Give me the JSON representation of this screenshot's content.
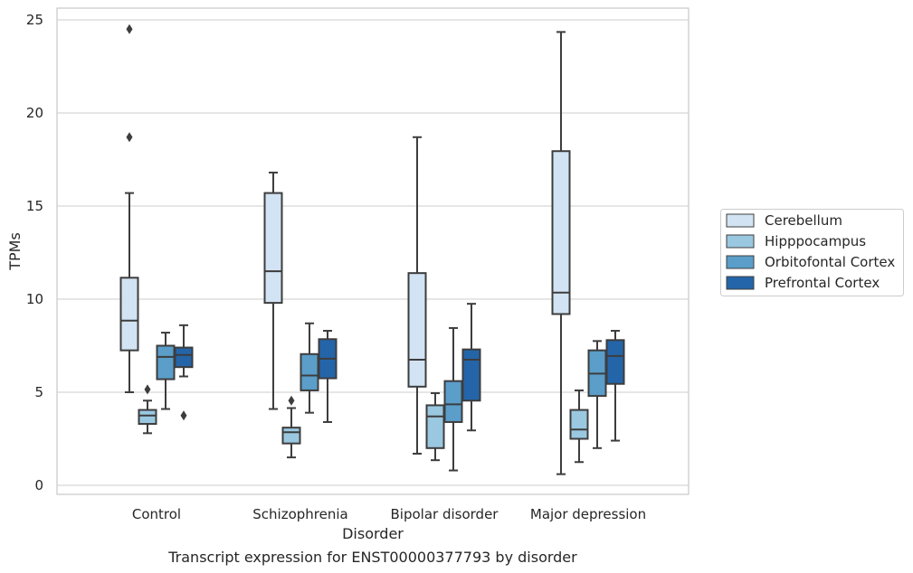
{
  "chart_data": {
    "type": "box",
    "title": "Transcript expression for ENST00000377793 by disorder",
    "xlabel": "Disorder",
    "ylabel": "TPMs",
    "ylim": [
      -0.5,
      25.7
    ],
    "yticks": [
      0,
      5,
      10,
      15,
      20,
      25
    ],
    "grid": "horizontal",
    "legend_position": "right",
    "categories": [
      "Control",
      "Schizophrenia",
      "Bipolar disorder",
      "Major depression"
    ],
    "series": [
      {
        "name": "Cerebellum",
        "color": "#d2e3f3",
        "boxes": [
          {
            "whislo": 5.0,
            "q1": 7.25,
            "med": 8.85,
            "q3": 11.15,
            "whishi": 15.7,
            "fliers": [
              18.7,
              24.5
            ]
          },
          {
            "whislo": 4.1,
            "q1": 9.8,
            "med": 11.5,
            "q3": 15.7,
            "whishi": 16.8,
            "fliers": []
          },
          {
            "whislo": 1.7,
            "q1": 5.3,
            "med": 6.75,
            "q3": 11.4,
            "whishi": 18.7,
            "fliers": []
          },
          {
            "whislo": 0.6,
            "q1": 9.2,
            "med": 10.35,
            "q3": 17.95,
            "whishi": 24.35,
            "fliers": []
          }
        ]
      },
      {
        "name": "Hipppocampus",
        "color": "#9ac8e0",
        "boxes": [
          {
            "whislo": 2.8,
            "q1": 3.3,
            "med": 3.75,
            "q3": 4.05,
            "whishi": 4.55,
            "fliers": [
              5.15
            ]
          },
          {
            "whislo": 1.5,
            "q1": 2.25,
            "med": 2.85,
            "q3": 3.1,
            "whishi": 4.15,
            "fliers": [
              4.55
            ]
          },
          {
            "whislo": 1.35,
            "q1": 2.0,
            "med": 3.7,
            "q3": 4.3,
            "whishi": 4.95,
            "fliers": []
          },
          {
            "whislo": 1.25,
            "q1": 2.5,
            "med": 3.0,
            "q3": 4.05,
            "whishi": 5.1,
            "fliers": []
          }
        ]
      },
      {
        "name": "Orbitofontal Cortex",
        "color": "#5a9ec9",
        "boxes": [
          {
            "whislo": 4.1,
            "q1": 5.7,
            "med": 6.9,
            "q3": 7.5,
            "whishi": 8.2,
            "fliers": []
          },
          {
            "whislo": 3.9,
            "q1": 5.1,
            "med": 5.9,
            "q3": 7.05,
            "whishi": 8.7,
            "fliers": []
          },
          {
            "whislo": 0.8,
            "q1": 3.4,
            "med": 4.35,
            "q3": 5.6,
            "whishi": 8.45,
            "fliers": []
          },
          {
            "whislo": 2.0,
            "q1": 4.8,
            "med": 6.0,
            "q3": 7.25,
            "whishi": 7.75,
            "fliers": []
          }
        ]
      },
      {
        "name": "Prefrontal Cortex",
        "color": "#2465a9",
        "boxes": [
          {
            "whislo": 5.85,
            "q1": 6.35,
            "med": 7.0,
            "q3": 7.4,
            "whishi": 8.6,
            "fliers": [
              3.75
            ]
          },
          {
            "whislo": 3.4,
            "q1": 5.75,
            "med": 6.8,
            "q3": 7.85,
            "whishi": 8.3,
            "fliers": []
          },
          {
            "whislo": 2.95,
            "q1": 4.55,
            "med": 6.75,
            "q3": 7.3,
            "whishi": 9.75,
            "fliers": []
          },
          {
            "whislo": 2.4,
            "q1": 5.45,
            "med": 6.95,
            "q3": 7.8,
            "whishi": 8.3,
            "fliers": []
          }
        ]
      }
    ]
  }
}
